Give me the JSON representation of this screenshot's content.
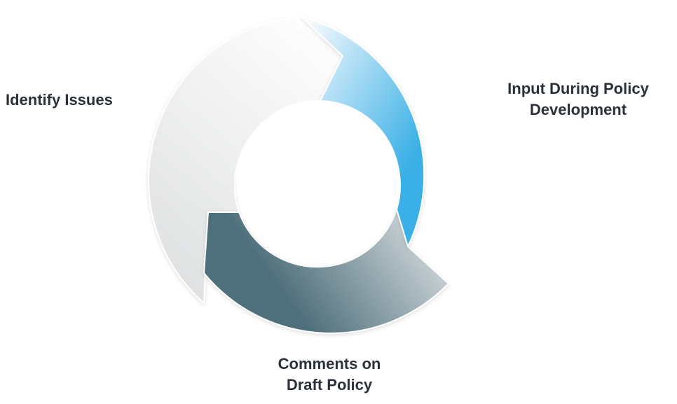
{
  "diagram": {
    "type": "cycle",
    "stages": [
      {
        "key": "identify",
        "lines": [
          "Identify Issues"
        ]
      },
      {
        "key": "input",
        "lines": [
          "Input During Policy",
          "Development"
        ]
      },
      {
        "key": "comments",
        "lines": [
          "Comments on",
          "Draft Policy"
        ]
      }
    ]
  },
  "colors": {
    "text": "#2b3138",
    "identify_light": "#fbfbfb",
    "identify_dark": "#dcdedf",
    "input_light": "#f4f9fd",
    "input_dark": "#3bb0e6",
    "comments_light": "#e9ebed",
    "comments_dark": "#4e6f7b"
  }
}
